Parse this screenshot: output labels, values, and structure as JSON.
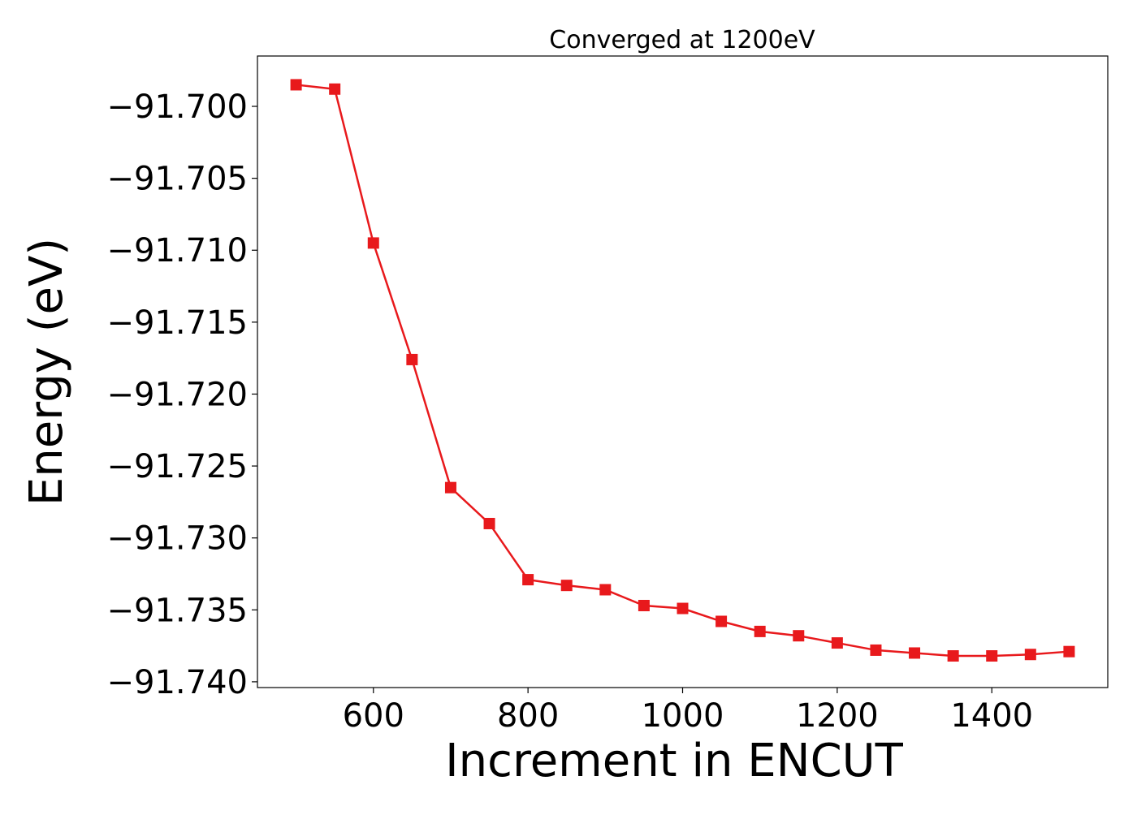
{
  "chart_data": {
    "type": "line",
    "title": "Converged at 1200eV",
    "xlabel": "Increment in ENCUT",
    "ylabel": "Energy (eV)",
    "xlim": [
      450,
      1550
    ],
    "ylim": [
      -91.7404,
      -91.6965
    ],
    "x_ticks": [
      600,
      800,
      1000,
      1200,
      1400
    ],
    "x_tick_labels": [
      "600",
      "800",
      "1000",
      "1200",
      "1400"
    ],
    "y_ticks": [
      -91.7,
      -91.705,
      -91.71,
      -91.715,
      -91.72,
      -91.725,
      -91.73,
      -91.735,
      -91.74
    ],
    "y_tick_labels": [
      "−91.700",
      "−91.705",
      "−91.710",
      "−91.715",
      "−91.720",
      "−91.725",
      "−91.730",
      "−91.735",
      "−91.740"
    ],
    "grid": false,
    "series": [
      {
        "color": "#e8191c",
        "marker": "square",
        "x": [
          500,
          550,
          600,
          650,
          700,
          750,
          800,
          850,
          900,
          950,
          1000,
          1050,
          1100,
          1150,
          1200,
          1250,
          1300,
          1350,
          1400,
          1450,
          1500
        ],
        "y": [
          -91.6985,
          -91.6988,
          -91.7095,
          -91.7176,
          -91.7265,
          -91.729,
          -91.7329,
          -91.7333,
          -91.7336,
          -91.7347,
          -91.7349,
          -91.7358,
          -91.7365,
          -91.7368,
          -91.7373,
          -91.7378,
          -91.738,
          -91.7382,
          -91.7382,
          -91.7381,
          -91.7379
        ]
      }
    ]
  }
}
